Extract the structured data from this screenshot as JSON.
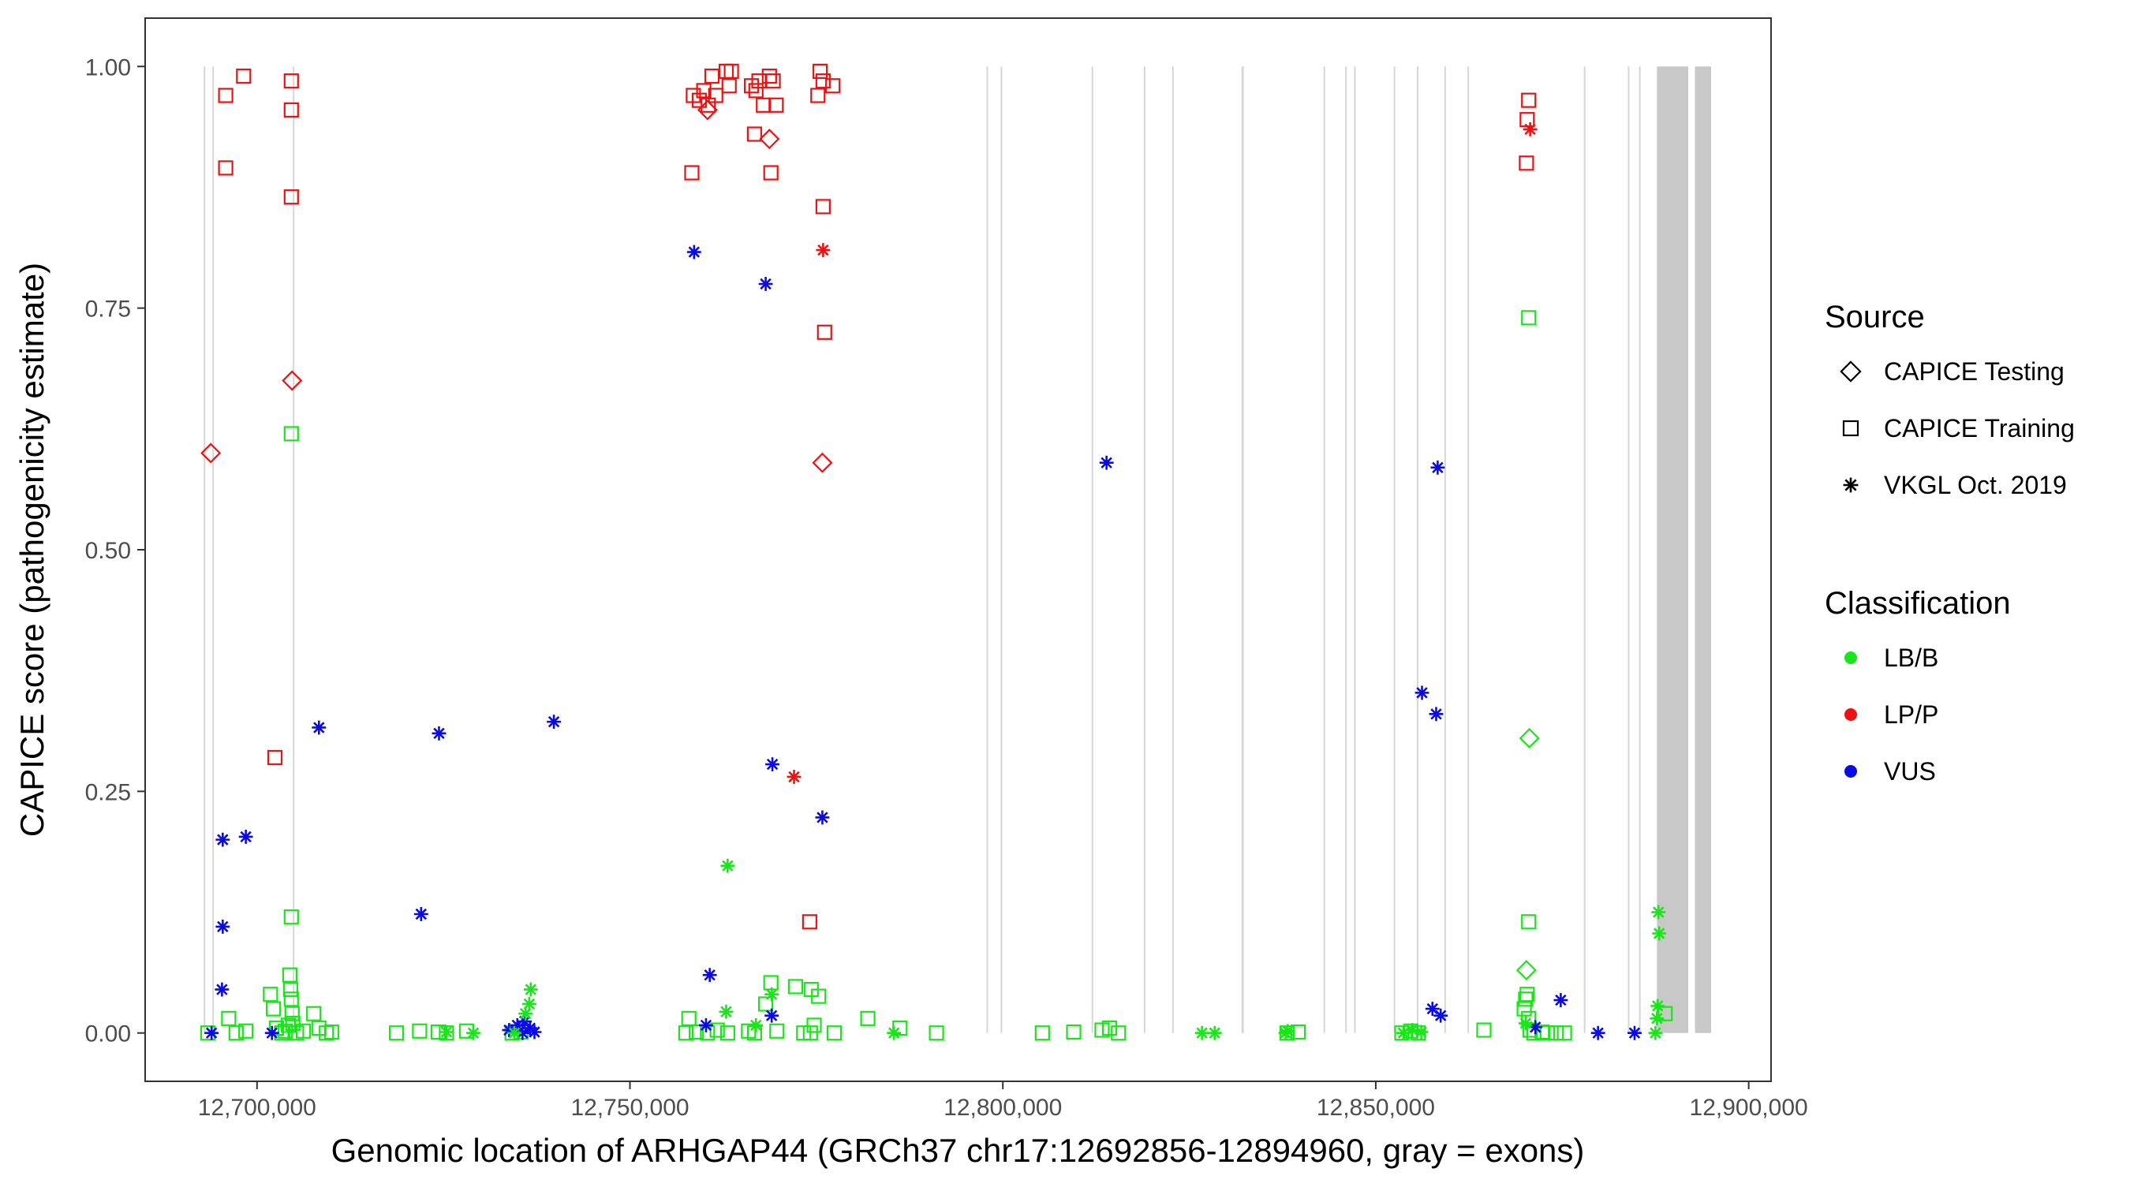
{
  "chart_data": {
    "type": "scatter",
    "xlabel": "Genomic location of ARHGAP44 (GRCh37 chr17:12692856-12894960, gray = exons)",
    "ylabel": "CAPICE score (pathogenicity estimate)",
    "xlim": [
      12685000,
      12903000
    ],
    "ylim": [
      -0.05,
      1.05
    ],
    "x_ticks": [
      12700000,
      12750000,
      12800000,
      12850000,
      12900000
    ],
    "x_tick_labels": [
      "12,700,000",
      "12,750,000",
      "12,800,000",
      "12,850,000",
      "12,900,000"
    ],
    "y_ticks": [
      0,
      0.25,
      0.5,
      0.75,
      1
    ],
    "y_tick_labels": [
      "0.00",
      "0.25",
      "0.50",
      "0.75",
      "1.00"
    ],
    "grid": false,
    "legend_placement": "right",
    "legend": {
      "source_title": "Source",
      "source_items": [
        {
          "label": "CAPICE Testing",
          "shape": "diamond"
        },
        {
          "label": "CAPICE Training",
          "shape": "square"
        },
        {
          "label": "VKGL Oct. 2019",
          "shape": "asterisk"
        }
      ],
      "class_title": "Classification",
      "class_items": [
        {
          "label": "LB/B",
          "color": "#19e619"
        },
        {
          "label": "LP/P",
          "color": "#ee1111"
        },
        {
          "label": "VUS",
          "color": "#0a0ae6"
        }
      ]
    },
    "exons": [
      {
        "start": 12692856,
        "end": 12693060
      },
      {
        "start": 12694010,
        "end": 12694200
      },
      {
        "start": 12704800,
        "end": 12704950
      },
      {
        "start": 12797800,
        "end": 12797950
      },
      {
        "start": 12799700,
        "end": 12799850
      },
      {
        "start": 12811900,
        "end": 12812050
      },
      {
        "start": 12818900,
        "end": 12819050
      },
      {
        "start": 12822700,
        "end": 12822850
      },
      {
        "start": 12832000,
        "end": 12832300
      },
      {
        "start": 12843000,
        "end": 12843150
      },
      {
        "start": 12845900,
        "end": 12846050
      },
      {
        "start": 12847100,
        "end": 12847250
      },
      {
        "start": 12852400,
        "end": 12852550
      },
      {
        "start": 12855500,
        "end": 12855650
      },
      {
        "start": 12859200,
        "end": 12859350
      },
      {
        "start": 12862300,
        "end": 12862450
      },
      {
        "start": 12877900,
        "end": 12878050
      },
      {
        "start": 12883800,
        "end": 12883950
      },
      {
        "start": 12885300,
        "end": 12885450
      },
      {
        "start": 12887700,
        "end": 12891900
      },
      {
        "start": 12892800,
        "end": 12894960
      }
    ],
    "series": [
      {
        "source": "CAPICE Testing",
        "classification": "LP/P",
        "points": [
          [
            12693800,
            0.6
          ],
          [
            12704700,
            0.675
          ],
          [
            12760400,
            0.955
          ],
          [
            12768700,
            0.925
          ],
          [
            12775800,
            0.59
          ]
        ]
      },
      {
        "source": "CAPICE Testing",
        "classification": "LB/B",
        "points": [
          [
            12870600,
            0.305
          ],
          [
            12870200,
            0.065
          ]
        ]
      },
      {
        "source": "CAPICE Training",
        "classification": "LP/P",
        "points": [
          [
            12695800,
            0.97
          ],
          [
            12698200,
            0.99
          ],
          [
            12704600,
            0.985
          ],
          [
            12704600,
            0.955
          ],
          [
            12695800,
            0.895
          ],
          [
            12704600,
            0.865
          ],
          [
            12702400,
            0.285
          ],
          [
            12758300,
            0.89
          ],
          [
            12758500,
            0.97
          ],
          [
            12759300,
            0.965
          ],
          [
            12759900,
            0.975
          ],
          [
            12760500,
            0.96
          ],
          [
            12761000,
            0.99
          ],
          [
            12761500,
            0.97
          ],
          [
            12762900,
            0.995
          ],
          [
            12763300,
            0.98
          ],
          [
            12763600,
            0.995
          ],
          [
            12766300,
            0.98
          ],
          [
            12766900,
            0.975
          ],
          [
            12767300,
            0.985
          ],
          [
            12767900,
            0.96
          ],
          [
            12768700,
            0.99
          ],
          [
            12769200,
            0.985
          ],
          [
            12769600,
            0.96
          ],
          [
            12766700,
            0.93
          ],
          [
            12768900,
            0.89
          ],
          [
            12775500,
            0.995
          ],
          [
            12775900,
            0.985
          ],
          [
            12775200,
            0.97
          ],
          [
            12777200,
            0.98
          ],
          [
            12775900,
            0.855
          ],
          [
            12776100,
            0.725
          ],
          [
            12774100,
            0.115
          ],
          [
            12870500,
            0.965
          ],
          [
            12870300,
            0.945
          ],
          [
            12870200,
            0.9
          ]
        ]
      },
      {
        "source": "CAPICE Training",
        "classification": "LB/B",
        "points": [
          [
            12704600,
            0.62
          ],
          [
            12704600,
            0.12
          ],
          [
            12870500,
            0.74
          ],
          [
            12870500,
            0.115
          ],
          [
            12693400,
            0.0
          ],
          [
            12696200,
            0.015
          ],
          [
            12697200,
            0.0
          ],
          [
            12698500,
            0.002
          ],
          [
            12701800,
            0.04
          ],
          [
            12702200,
            0.025
          ],
          [
            12702600,
            0.005
          ],
          [
            12703300,
            0.0
          ],
          [
            12703800,
            0.002
          ],
          [
            12704200,
            0.008
          ],
          [
            12704400,
            0.06
          ],
          [
            12704500,
            0.045
          ],
          [
            12704600,
            0.035
          ],
          [
            12704700,
            0.02
          ],
          [
            12704800,
            0.01
          ],
          [
            12705300,
            0.0
          ],
          [
            12706200,
            0.002
          ],
          [
            12707600,
            0.02
          ],
          [
            12708300,
            0.005
          ],
          [
            12709300,
            0.0
          ],
          [
            12710000,
            0.001
          ],
          [
            12718700,
            0.0
          ],
          [
            12721800,
            0.002
          ],
          [
            12724300,
            0.001
          ],
          [
            12725400,
            0.0
          ],
          [
            12728100,
            0.002
          ],
          [
            12734200,
            0.0
          ],
          [
            12735400,
            0.001
          ],
          [
            12757900,
            0.015
          ],
          [
            12757500,
            0.0
          ],
          [
            12758900,
            0.001
          ],
          [
            12760400,
            0.0
          ],
          [
            12761700,
            0.003
          ],
          [
            12763100,
            0.0
          ],
          [
            12765900,
            0.002
          ],
          [
            12766700,
            0.0
          ],
          [
            12768200,
            0.03
          ],
          [
            12768900,
            0.052
          ],
          [
            12769700,
            0.002
          ],
          [
            12772200,
            0.048
          ],
          [
            12773300,
            0.0
          ],
          [
            12774300,
            0.045
          ],
          [
            12774700,
            0.008
          ],
          [
            12775300,
            0.038
          ],
          [
            12774200,
            0.0
          ],
          [
            12777400,
            0.0
          ],
          [
            12781900,
            0.015
          ],
          [
            12786200,
            0.005
          ],
          [
            12791100,
            0.0
          ],
          [
            12805300,
            0.0
          ],
          [
            12809500,
            0.001
          ],
          [
            12813300,
            0.003
          ],
          [
            12814300,
            0.005
          ],
          [
            12815500,
            0.0
          ],
          [
            12838100,
            0.0
          ],
          [
            12839600,
            0.001
          ],
          [
            12853500,
            0.0
          ],
          [
            12854700,
            0.002
          ],
          [
            12855700,
            0.0
          ],
          [
            12864500,
            0.003
          ],
          [
            12869900,
            0.025
          ],
          [
            12870100,
            0.035
          ],
          [
            12870300,
            0.04
          ],
          [
            12870500,
            0.015
          ],
          [
            12870700,
            0.003
          ],
          [
            12871200,
            0.0
          ],
          [
            12872300,
            0.001
          ],
          [
            12873000,
            0.0
          ],
          [
            12874200,
            0.0
          ],
          [
            12875300,
            0.0
          ],
          [
            12888800,
            0.02
          ]
        ]
      },
      {
        "source": "VKGL Oct. 2019",
        "classification": "LP/P",
        "points": [
          [
            12775900,
            0.81
          ],
          [
            12772000,
            0.265
          ],
          [
            12870700,
            0.935
          ]
        ]
      },
      {
        "source": "VKGL Oct. 2019",
        "classification": "VUS",
        "points": [
          [
            12758600,
            0.808
          ],
          [
            12768200,
            0.775
          ],
          [
            12813900,
            0.59
          ],
          [
            12858300,
            0.585
          ],
          [
            12856200,
            0.352
          ],
          [
            12858100,
            0.33
          ],
          [
            12695400,
            0.2
          ],
          [
            12698500,
            0.203
          ],
          [
            12708300,
            0.316
          ],
          [
            12724400,
            0.31
          ],
          [
            12739800,
            0.322
          ],
          [
            12722000,
            0.123
          ],
          [
            12695400,
            0.11
          ],
          [
            12695300,
            0.045
          ],
          [
            12769100,
            0.278
          ],
          [
            12775800,
            0.223
          ],
          [
            12760700,
            0.06
          ],
          [
            12769000,
            0.018
          ],
          [
            12760200,
            0.008
          ],
          [
            12857600,
            0.025
          ],
          [
            12858700,
            0.018
          ],
          [
            12874800,
            0.034
          ],
          [
            12871400,
            0.006
          ],
          [
            12693900,
            0.0
          ],
          [
            12702000,
            0.0
          ],
          [
            12733800,
            0.003
          ],
          [
            12734900,
            0.008
          ],
          [
            12735600,
            0.0
          ],
          [
            12735900,
            0.012
          ],
          [
            12736600,
            0.005
          ],
          [
            12737200,
            0.001
          ],
          [
            12879800,
            0.0
          ],
          [
            12884700,
            0.0
          ]
        ]
      },
      {
        "source": "VKGL Oct. 2019",
        "classification": "LB/B",
        "points": [
          [
            12763100,
            0.173
          ],
          [
            12736700,
            0.045
          ],
          [
            12736500,
            0.03
          ],
          [
            12736000,
            0.02
          ],
          [
            12734500,
            0.0
          ],
          [
            12725400,
            0.001
          ],
          [
            12729000,
            0.0
          ],
          [
            12762900,
            0.022
          ],
          [
            12766900,
            0.008
          ],
          [
            12769000,
            0.04
          ],
          [
            12785400,
            0.0
          ],
          [
            12826700,
            0.0
          ],
          [
            12828400,
            0.0
          ],
          [
            12837900,
            0.0
          ],
          [
            12838200,
            0.002
          ],
          [
            12853700,
            0.0
          ],
          [
            12854900,
            0.003
          ],
          [
            12856100,
            0.001
          ],
          [
            12870100,
            0.01
          ],
          [
            12887900,
            0.125
          ],
          [
            12888000,
            0.103
          ],
          [
            12887800,
            0.028
          ],
          [
            12887700,
            0.015
          ],
          [
            12887500,
            0.0
          ]
        ]
      }
    ]
  }
}
